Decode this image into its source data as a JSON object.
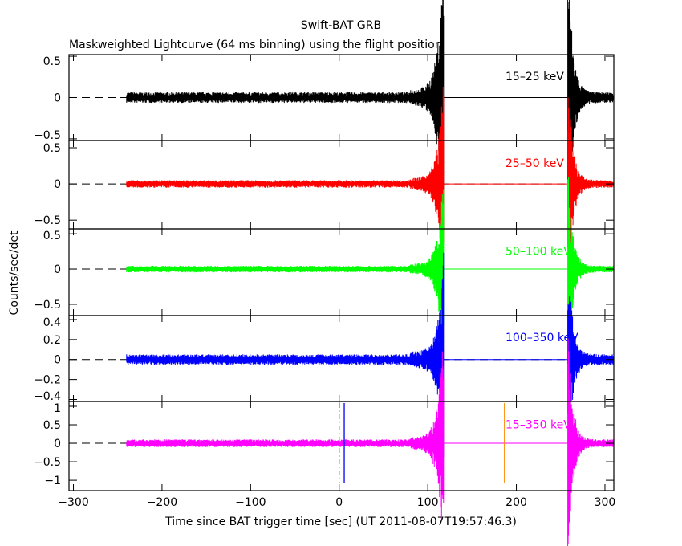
{
  "chart_data": {
    "type": "line",
    "title": "Swift-BAT GRB",
    "subtitle": "Maskweighted Lightcurve (64 ms binning) using the flight position",
    "xlabel": "Time since BAT trigger time [sec] (UT 2011-08-07T19:57:46.3)",
    "ylabel": "Counts/sec/det",
    "xlim": [
      -305,
      310
    ],
    "xticks": [
      -300,
      -200,
      -100,
      0,
      100,
      200,
      300
    ],
    "xtick_labels": [
      "−300",
      "−200",
      "−100",
      "0",
      "100",
      "200",
      "300"
    ],
    "binning_sec": 0.064,
    "data_segments": [
      [
        -240,
        118
      ],
      [
        258,
        310
      ]
    ],
    "grid": false,
    "panels": [
      {
        "label": "15–25 keV",
        "color": "#000000",
        "ylim": [
          -0.52,
          0.52
        ],
        "yticks": [
          0.5,
          0,
          -0.5
        ],
        "ytick_labels": [
          "0.5",
          "0",
          "−0.5"
        ],
        "noise_rms": 0.025,
        "peak": 0.75
      },
      {
        "label": "25–50 keV",
        "color": "#ff0000",
        "ylim": [
          -0.62,
          0.6
        ],
        "yticks": [
          0.5,
          0,
          -0.5
        ],
        "ytick_labels": [
          "0.5",
          "0",
          "−0.5"
        ],
        "noise_rms": 0.02,
        "peak": 0.65
      },
      {
        "label": "50–100 keV",
        "color": "#00ff00",
        "ylim": [
          -0.66,
          0.57
        ],
        "yticks": [
          0.5,
          0,
          -0.5
        ],
        "ytick_labels": [
          "0.5",
          "0",
          "−0.5"
        ],
        "noise_rms": 0.018,
        "peak": 0.6
      },
      {
        "label": "100–350 keV",
        "color": "#0000ff",
        "ylim": [
          -0.42,
          0.44
        ],
        "yticks": [
          0.4,
          0.2,
          0,
          -0.2,
          -0.4
        ],
        "ytick_labels": [
          "0.4",
          "0.2",
          "0",
          "−0.2",
          "−0.4"
        ],
        "noise_rms": 0.02,
        "peak": 0.45
      },
      {
        "label": "15–350 keV",
        "color": "#ff00ff",
        "ylim": [
          -1.28,
          1.13
        ],
        "yticks": [
          1,
          0.5,
          0,
          -0.5,
          -1
        ],
        "ytick_labels": [
          "1",
          "0.5",
          "0",
          "−0.5",
          "−1"
        ],
        "noise_rms": 0.04,
        "peak": 1.3
      }
    ],
    "markers": [
      {
        "name": "trigger",
        "x": 0,
        "color": "#00cc00",
        "style": "dash-dot"
      },
      {
        "name": "t-blue",
        "x": 5.7,
        "color": "#0000ff",
        "style": "solid"
      },
      {
        "name": "t-orange",
        "x": 186.6,
        "color": "#ff8800",
        "style": "solid"
      }
    ]
  }
}
